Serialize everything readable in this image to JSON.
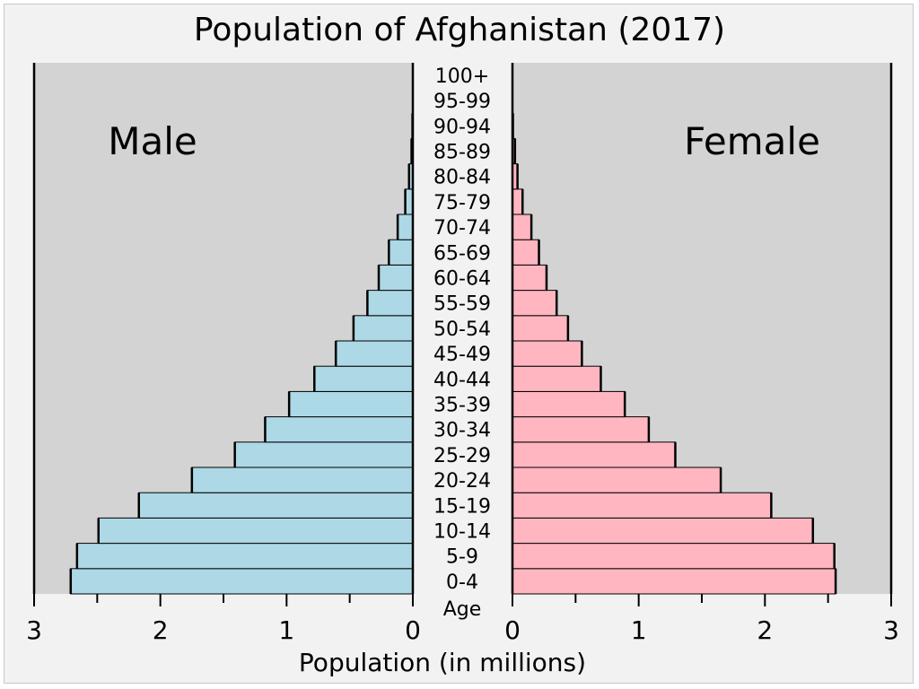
{
  "chart_data": {
    "type": "bar",
    "title": "Population of Afghanistan (2017)",
    "xlabel": "Population (in millions)",
    "ylabel": "Age",
    "xlim": [
      0,
      3
    ],
    "x_ticks": [
      "0",
      "1",
      "2",
      "3"
    ],
    "grid": false,
    "categories": [
      "0-4",
      "5-9",
      "10-14",
      "15-19",
      "20-24",
      "25-29",
      "30-34",
      "35-39",
      "40-44",
      "45-49",
      "50-54",
      "55-59",
      "60-64",
      "65-69",
      "70-74",
      "75-79",
      "80-84",
      "85-89",
      "90-94",
      "95-99",
      "100+"
    ],
    "series": [
      {
        "name": "Male",
        "color": "#add8e6",
        "values": [
          2.71,
          2.66,
          2.49,
          2.17,
          1.75,
          1.41,
          1.17,
          0.98,
          0.78,
          0.61,
          0.47,
          0.36,
          0.27,
          0.19,
          0.12,
          0.06,
          0.03,
          0.01,
          0.003,
          0.001,
          0
        ]
      },
      {
        "name": "Female",
        "color": "#ffb6c1",
        "values": [
          2.56,
          2.55,
          2.38,
          2.05,
          1.65,
          1.29,
          1.08,
          0.89,
          0.7,
          0.55,
          0.44,
          0.35,
          0.27,
          0.21,
          0.15,
          0.08,
          0.04,
          0.02,
          0.004,
          0.001,
          0
        ]
      }
    ],
    "colors": {
      "panel": "#d3d3d3",
      "background": "#f2f2f2"
    }
  }
}
